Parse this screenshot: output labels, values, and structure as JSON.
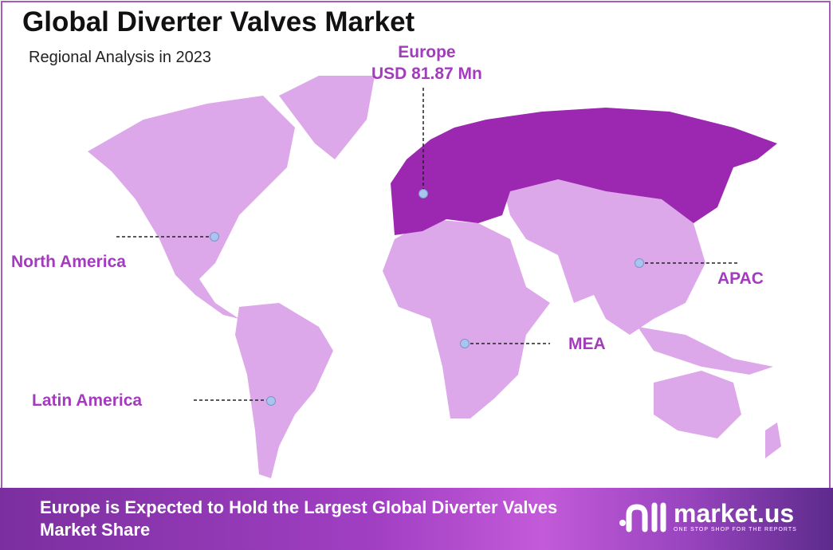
{
  "header": {
    "title": "Global Diverter Valves Market",
    "subtitle": "Regional Analysis in 2023"
  },
  "highlight": {
    "region": "Europe",
    "value": "USD 81.87 Mn"
  },
  "regions": [
    {
      "label": "North America"
    },
    {
      "label": "Europe"
    },
    {
      "label": "APAC"
    },
    {
      "label": "MEA"
    },
    {
      "label": "Latin America"
    }
  ],
  "colors": {
    "land": "#dca8e9",
    "highlight_land": "#9c28b2",
    "label": "#a33bbd",
    "marker": "#a9c4ee"
  },
  "footer": {
    "text": "Europe is Expected to Hold the Largest Global Diverter Valves Market Share"
  },
  "logo": {
    "name": "market.us",
    "tagline": "ONE STOP SHOP FOR THE REPORTS"
  }
}
